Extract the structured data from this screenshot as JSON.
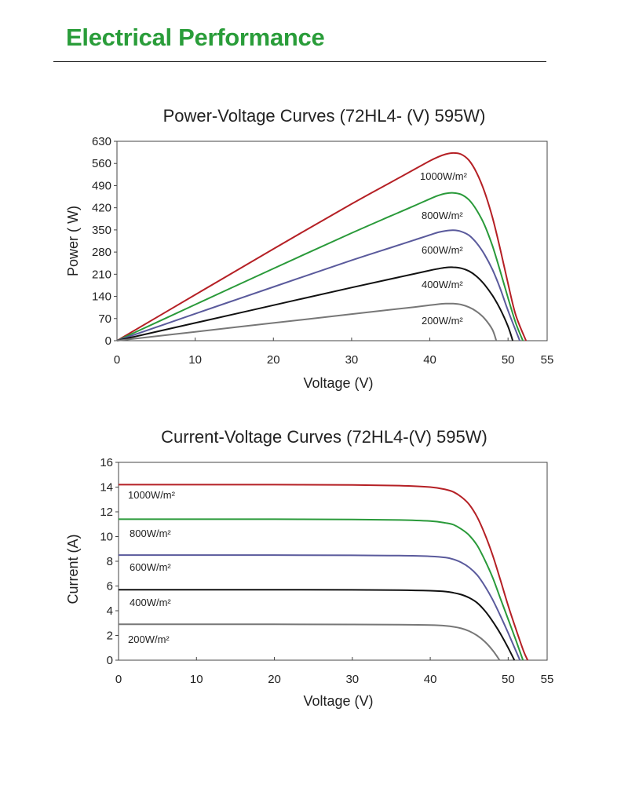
{
  "header": {
    "title": "Electrical Performance"
  },
  "chart_data": [
    {
      "type": "line",
      "title": "Power-Voltage Curves (72HL4- (V)  595W)",
      "xlabel": "Voltage (V)",
      "ylabel": "Power ( W)",
      "xlim": [
        0,
        55
      ],
      "ylim": [
        0,
        630
      ],
      "xticks": [
        "0",
        "10",
        "20",
        "30",
        "40",
        "50",
        "55"
      ],
      "yticks": [
        "0",
        "70",
        "140",
        "210",
        "280",
        "350",
        "420",
        "490",
        "560",
        "630"
      ],
      "grid": false,
      "series": [
        {
          "name": "1000W/m²",
          "color": "#b52025",
          "x": [
            0,
            10,
            20,
            30,
            35,
            38,
            40,
            41,
            42,
            43,
            44,
            45,
            46,
            47,
            48,
            49,
            50,
            51,
            52.3
          ],
          "y": [
            0,
            145,
            290,
            432,
            500,
            541,
            568,
            580,
            589,
            593,
            589,
            570,
            530,
            470,
            390,
            290,
            180,
            80,
            0
          ]
        },
        {
          "name": "800W/m²",
          "color": "#2a9a3a",
          "x": [
            0,
            10,
            20,
            30,
            35,
            38,
            40,
            41,
            42,
            43,
            44,
            45,
            46,
            47,
            48,
            49,
            50,
            51,
            51.9
          ],
          "y": [
            0,
            114,
            228,
            340,
            394,
            426,
            448,
            458,
            465,
            467,
            462,
            445,
            412,
            365,
            300,
            220,
            135,
            55,
            0
          ]
        },
        {
          "name": "600W/m²",
          "color": "#5a5a9c",
          "x": [
            0,
            10,
            20,
            30,
            35,
            38,
            40,
            41,
            42,
            43,
            44,
            45,
            46,
            47,
            48,
            49,
            50,
            51.5
          ],
          "y": [
            0,
            85,
            170,
            254,
            294,
            318,
            334,
            342,
            347,
            349,
            345,
            333,
            308,
            272,
            225,
            165,
            95,
            0
          ]
        },
        {
          "name": "400W/m²",
          "color": "#111111",
          "x": [
            0,
            10,
            20,
            30,
            35,
            38,
            40,
            41,
            42,
            43,
            44,
            45,
            46,
            47,
            48,
            49,
            50,
            50.6
          ],
          "y": [
            0,
            56,
            112,
            168,
            195,
            211,
            222,
            227,
            231,
            232,
            229,
            220,
            203,
            177,
            143,
            100,
            45,
            0
          ]
        },
        {
          "name": "200W/m²",
          "color": "#777777",
          "x": [
            0,
            10,
            20,
            30,
            35,
            38,
            40,
            41,
            42,
            43,
            44,
            45,
            46,
            47,
            48,
            48.5
          ],
          "y": [
            0,
            28,
            56,
            84,
            98,
            106,
            112,
            115,
            117,
            117,
            114,
            106,
            92,
            70,
            35,
            0
          ]
        }
      ]
    },
    {
      "type": "line",
      "title": "Current-Voltage Curves (72HL4-(V) 595W)",
      "xlabel": "Voltage (V)",
      "ylabel": "Current (A)",
      "xlim": [
        0,
        55
      ],
      "ylim": [
        0,
        16
      ],
      "xticks": [
        "0",
        "10",
        "20",
        "30",
        "40",
        "50",
        "55"
      ],
      "yticks": [
        "0",
        "2",
        "4",
        "6",
        "8",
        "10",
        "12",
        "14",
        "16"
      ],
      "grid": false,
      "series": [
        {
          "name": "1000W/m²",
          "color": "#b52025",
          "x": [
            0,
            10,
            20,
            30,
            36,
            40,
            42,
            43,
            44,
            45,
            46,
            47,
            48,
            49,
            50,
            51,
            52,
            52.5
          ],
          "y": [
            14.2,
            14.2,
            14.2,
            14.17,
            14.12,
            14.0,
            13.8,
            13.6,
            13.2,
            12.6,
            11.6,
            10.2,
            8.5,
            6.5,
            4.4,
            2.5,
            0.7,
            0
          ]
        },
        {
          "name": "800W/m²",
          "color": "#2a9a3a",
          "x": [
            0,
            10,
            20,
            30,
            36,
            40,
            42,
            43,
            44,
            45,
            46,
            47,
            48,
            49,
            50,
            51,
            51.9
          ],
          "y": [
            11.4,
            11.4,
            11.4,
            11.38,
            11.34,
            11.25,
            11.1,
            10.95,
            10.6,
            10.1,
            9.3,
            8.1,
            6.7,
            5.0,
            3.3,
            1.6,
            0
          ]
        },
        {
          "name": "600W/m²",
          "color": "#5a5a9c",
          "x": [
            0,
            10,
            20,
            30,
            36,
            40,
            42,
            43,
            44,
            45,
            46,
            47,
            48,
            49,
            50,
            51.5
          ],
          "y": [
            8.5,
            8.5,
            8.5,
            8.48,
            8.46,
            8.4,
            8.3,
            8.15,
            7.9,
            7.5,
            6.9,
            6.0,
            4.9,
            3.6,
            2.2,
            0
          ]
        },
        {
          "name": "400W/m²",
          "color": "#111111",
          "x": [
            0,
            10,
            20,
            30,
            36,
            40,
            42,
            43,
            44,
            45,
            46,
            47,
            48,
            49,
            50,
            50.8
          ],
          "y": [
            5.7,
            5.7,
            5.7,
            5.69,
            5.67,
            5.62,
            5.55,
            5.45,
            5.3,
            5.05,
            4.65,
            4.0,
            3.15,
            2.15,
            1.0,
            0
          ]
        },
        {
          "name": "200W/m²",
          "color": "#777777",
          "x": [
            0,
            10,
            20,
            30,
            36,
            40,
            42,
            43,
            44,
            45,
            46,
            47,
            48,
            48.9
          ],
          "y": [
            2.9,
            2.9,
            2.9,
            2.89,
            2.87,
            2.84,
            2.78,
            2.7,
            2.57,
            2.35,
            2.0,
            1.5,
            0.8,
            0
          ]
        }
      ]
    }
  ]
}
